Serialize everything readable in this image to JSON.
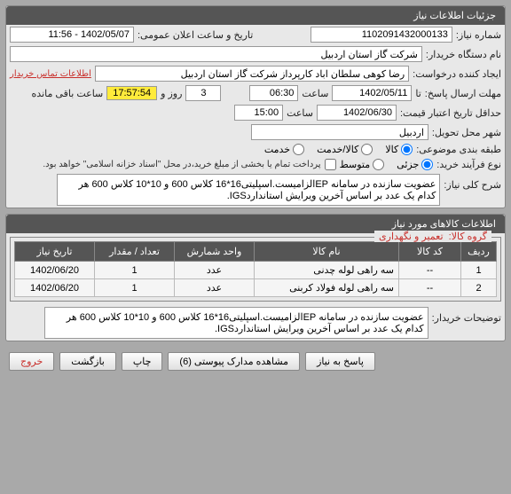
{
  "panel1_title": "جزئیات اطلاعات نیاز",
  "need_number_label": "شماره نیاز:",
  "need_number": "1102091432000133",
  "announce_datetime_label": "تاریخ و ساعت اعلان عمومی:",
  "announce_datetime": "1402/05/07 - 11:56",
  "buyer_org_label": "نام دستگاه خریدار:",
  "buyer_org": "شرکت گاز استان اردبیل",
  "requester_label": "ایجاد کننده درخواست:",
  "requester": "رضا کوهی سلطان اباد کارپرداز شرکت گاز استان اردبیل",
  "buyer_info_link": "اطلاعات تماس خریدار",
  "deadline_reply_label": "مهلت ارسال پاسخ:",
  "deadline_date_label": "تا",
  "deadline_date": "1402/05/11",
  "time_label": "ساعت",
  "deadline_time": "06:30",
  "days_remaining": "3",
  "days_label": "روز و",
  "timer": "17:57:54",
  "timer_label": "ساعت باقی مانده",
  "price_validity_label": "حداقل تاریخ اعتبار قیمت:",
  "price_validity_date": "1402/06/30",
  "price_validity_time": "15:00",
  "delivery_city_label": "شهر محل تحویل:",
  "delivery_city": "اردبیل",
  "subject_group_label": "طبقه بندی موضوعی:",
  "radio_goods": "کالا",
  "radio_goods_service": "کالا/خدمت",
  "radio_service": "خدمت",
  "purchase_process_label": "نوع فرآیند خرید:",
  "radio_partial": "جزئی",
  "radio_medium": "متوسط",
  "partial_note": "پرداخت تمام یا بخشی از مبلغ خرید،در محل \"اسناد خزانه اسلامی\" خواهد بود.",
  "desc_label": "شرح کلی نیاز:",
  "desc_text": "عضویت سازنده در سامانه EPالزامیست.اسپلیتی16*16 کلاس 600 و 10*10 کلاس 600 هر کدام یک عدد بر اساس آخرین ویرایش استانداردIGS.",
  "panel2_title": "اطلاعات کالاهای مورد نیاز",
  "goods_group_label": "گروه کالا:",
  "goods_group": "تعمیر و نگهداری",
  "cols": {
    "row": "ردیف",
    "code": "کد کالا",
    "name": "نام کالا",
    "unit": "واحد شمارش",
    "qty": "تعداد / مقدار",
    "date": "تاریخ نیاز"
  },
  "rows": [
    {
      "n": "1",
      "code": "--",
      "name": "سه راهی لوله چدنی",
      "unit": "عدد",
      "qty": "1",
      "date": "1402/06/20"
    },
    {
      "n": "2",
      "code": "--",
      "name": "سه راهی لوله فولاد کربنی",
      "unit": "عدد",
      "qty": "1",
      "date": "1402/06/20"
    }
  ],
  "buyer_desc_label": "توضیحات خریدار:",
  "buyer_desc": "عضویت سازنده در سامانه EPالزامیست.اسپلیتی16*16 کلاس 600 و 10*10 کلاس 600 هر کدام یک عدد بر اساس آخرین ویرایش استانداردIGS.",
  "btn_reply": "پاسخ به نیاز",
  "btn_attachments": "مشاهده مدارک پیوستی (6)",
  "btn_print": "چاپ",
  "btn_back": "بازگشت",
  "btn_exit": "خروج",
  "colors": {
    "header": "#555555",
    "legend": "#c9302c",
    "timer_bg": "#ffeb3b"
  }
}
